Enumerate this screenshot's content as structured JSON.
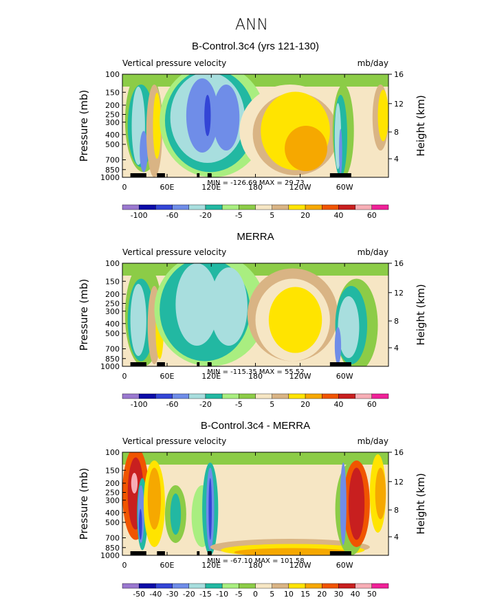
{
  "page_title": "ANN",
  "chart_data": [
    {
      "type": "heatmap",
      "title": "B-Control.3c4 (yrs 121-130)",
      "subtitle_left": "Vertical pressure velocity",
      "subtitle_right": "mb/day",
      "ylabel": "Pressure (mb)",
      "ylabel_right": "Height (km)",
      "x_ticks": [
        "0",
        "60E",
        "120E",
        "180",
        "120W",
        "60W"
      ],
      "y_ticks": [
        "100",
        "150",
        "200",
        "250",
        "300",
        "400",
        "500",
        "700",
        "850",
        "1000"
      ],
      "y_ticks_right": [
        "16",
        "12",
        "8",
        "4"
      ],
      "min_max": "MIN = -126.69   MAX =  29.73",
      "colorbar_labels": [
        "-100",
        "-60",
        "-20",
        "-5",
        "5",
        "20",
        "40",
        "60"
      ],
      "colors": [
        "#9a78cf",
        "#0b0ba8",
        "#3345d6",
        "#6f8de8",
        "#a8dede",
        "#22b8a2",
        "#a9ee80",
        "#8ccc47",
        "#f6e6c4",
        "#d9b484",
        "#ffe400",
        "#f6a800",
        "#f05500",
        "#c81f1f",
        "#f7aeb6",
        "#ef2198"
      ]
    },
    {
      "type": "heatmap",
      "title": "MERRA",
      "subtitle_left": "Vertical pressure velocity",
      "subtitle_right": "mb/day",
      "ylabel": "Pressure (mb)",
      "ylabel_right": "Height (km)",
      "x_ticks": [
        "0",
        "60E",
        "120E",
        "180",
        "120W",
        "60W"
      ],
      "y_ticks": [
        "100",
        "150",
        "200",
        "250",
        "300",
        "400",
        "500",
        "700",
        "850",
        "1000"
      ],
      "y_ticks_right": [
        "16",
        "12",
        "8",
        "4"
      ],
      "min_max": "MIN = -115.35   MAX =  55.52",
      "colorbar_labels": [
        "-100",
        "-60",
        "-20",
        "-5",
        "5",
        "20",
        "40",
        "60"
      ],
      "colors": [
        "#9a78cf",
        "#0b0ba8",
        "#3345d6",
        "#6f8de8",
        "#a8dede",
        "#22b8a2",
        "#a9ee80",
        "#8ccc47",
        "#f6e6c4",
        "#d9b484",
        "#ffe400",
        "#f6a800",
        "#f05500",
        "#c81f1f",
        "#f7aeb6",
        "#ef2198"
      ]
    },
    {
      "type": "heatmap",
      "title": "B-Control.3c4 - MERRA",
      "subtitle_left": "Vertical pressure velocity",
      "subtitle_right": "mb/day",
      "ylabel": "Pressure (mb)",
      "ylabel_right": "Height (km)",
      "x_ticks": [
        "0",
        "60E",
        "120E",
        "180",
        "120W",
        "60W"
      ],
      "y_ticks": [
        "100",
        "150",
        "200",
        "250",
        "300",
        "400",
        "500",
        "700",
        "850",
        "1000"
      ],
      "y_ticks_right": [
        "16",
        "12",
        "8",
        "4"
      ],
      "min_max": "MIN = -67.10   MAX = 101.58",
      "colorbar_labels": [
        "-50",
        "-40",
        "-30",
        "-20",
        "-15",
        "-10",
        "-5",
        "0",
        "5",
        "10",
        "15",
        "20",
        "30",
        "40",
        "50"
      ],
      "colors": [
        "#9a78cf",
        "#0b0ba8",
        "#3345d6",
        "#6f8de8",
        "#a8dede",
        "#22b8a2",
        "#a9ee80",
        "#8ccc47",
        "#f6e6c4",
        "#d9b484",
        "#ffe400",
        "#f6a800",
        "#f05500",
        "#c81f1f",
        "#f7aeb6",
        "#ef2198"
      ]
    }
  ]
}
